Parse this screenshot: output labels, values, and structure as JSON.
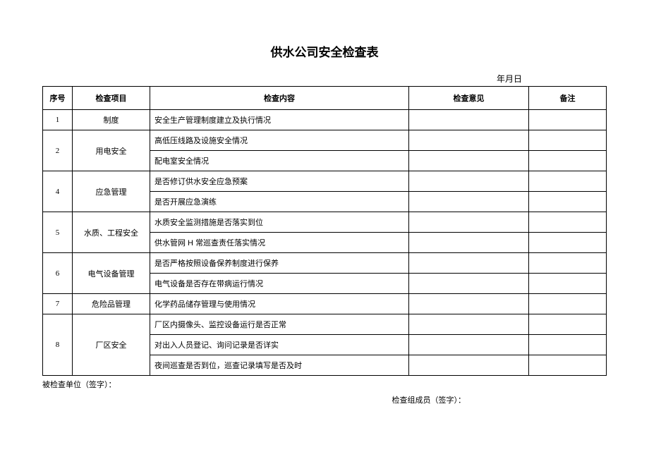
{
  "title": "供水公司安全检查表",
  "date_label": "年月日",
  "headers": {
    "seq": "序号",
    "item": "检查项目",
    "content": "检查内容",
    "opinion": "检查意见",
    "remark": "备注"
  },
  "rows": [
    {
      "seq": "1",
      "item": "制度",
      "contents": [
        "安全生产管理制度建立及执行情况"
      ]
    },
    {
      "seq": "2",
      "item": "用电安全",
      "contents": [
        "高低压线路及设施安全情况",
        "配电室安全情况"
      ]
    },
    {
      "seq": "4",
      "item": "应急管理",
      "contents": [
        "是否修订供水安全应急预案",
        "是否开展应急演练"
      ]
    },
    {
      "seq": "5",
      "item": "水质、工程安全",
      "contents": [
        "水质安全监测措施是否落实到位",
        "供水管网 H 常巡查责任落实情况"
      ]
    },
    {
      "seq": "6",
      "item": "电气设备管理",
      "contents": [
        "是否严格按照设备保养制度进行保养",
        "电气设备是否存在带病运行情况"
      ]
    },
    {
      "seq": "7",
      "item": "危险品管理",
      "contents": [
        "化学药品储存管理与使用情况"
      ]
    },
    {
      "seq": "8",
      "item": "厂区安全",
      "contents": [
        "厂区内摄像头、监控设备运行是否正常",
        "对出入人员登记、询问记录是否详实",
        "夜间巡查是否到位，巡查记录填写是否及时"
      ]
    }
  ],
  "footer": {
    "left": "被检查单位（签字）：",
    "right": "检查组成员（签字）："
  },
  "style": {
    "background_color": "#ffffff",
    "border_color": "#000000",
    "title_fontsize": 17,
    "body_fontsize": 11,
    "columns": {
      "seq_width": 42,
      "item_width": 110,
      "opinion_width": 170,
      "remark_width": 110
    }
  }
}
